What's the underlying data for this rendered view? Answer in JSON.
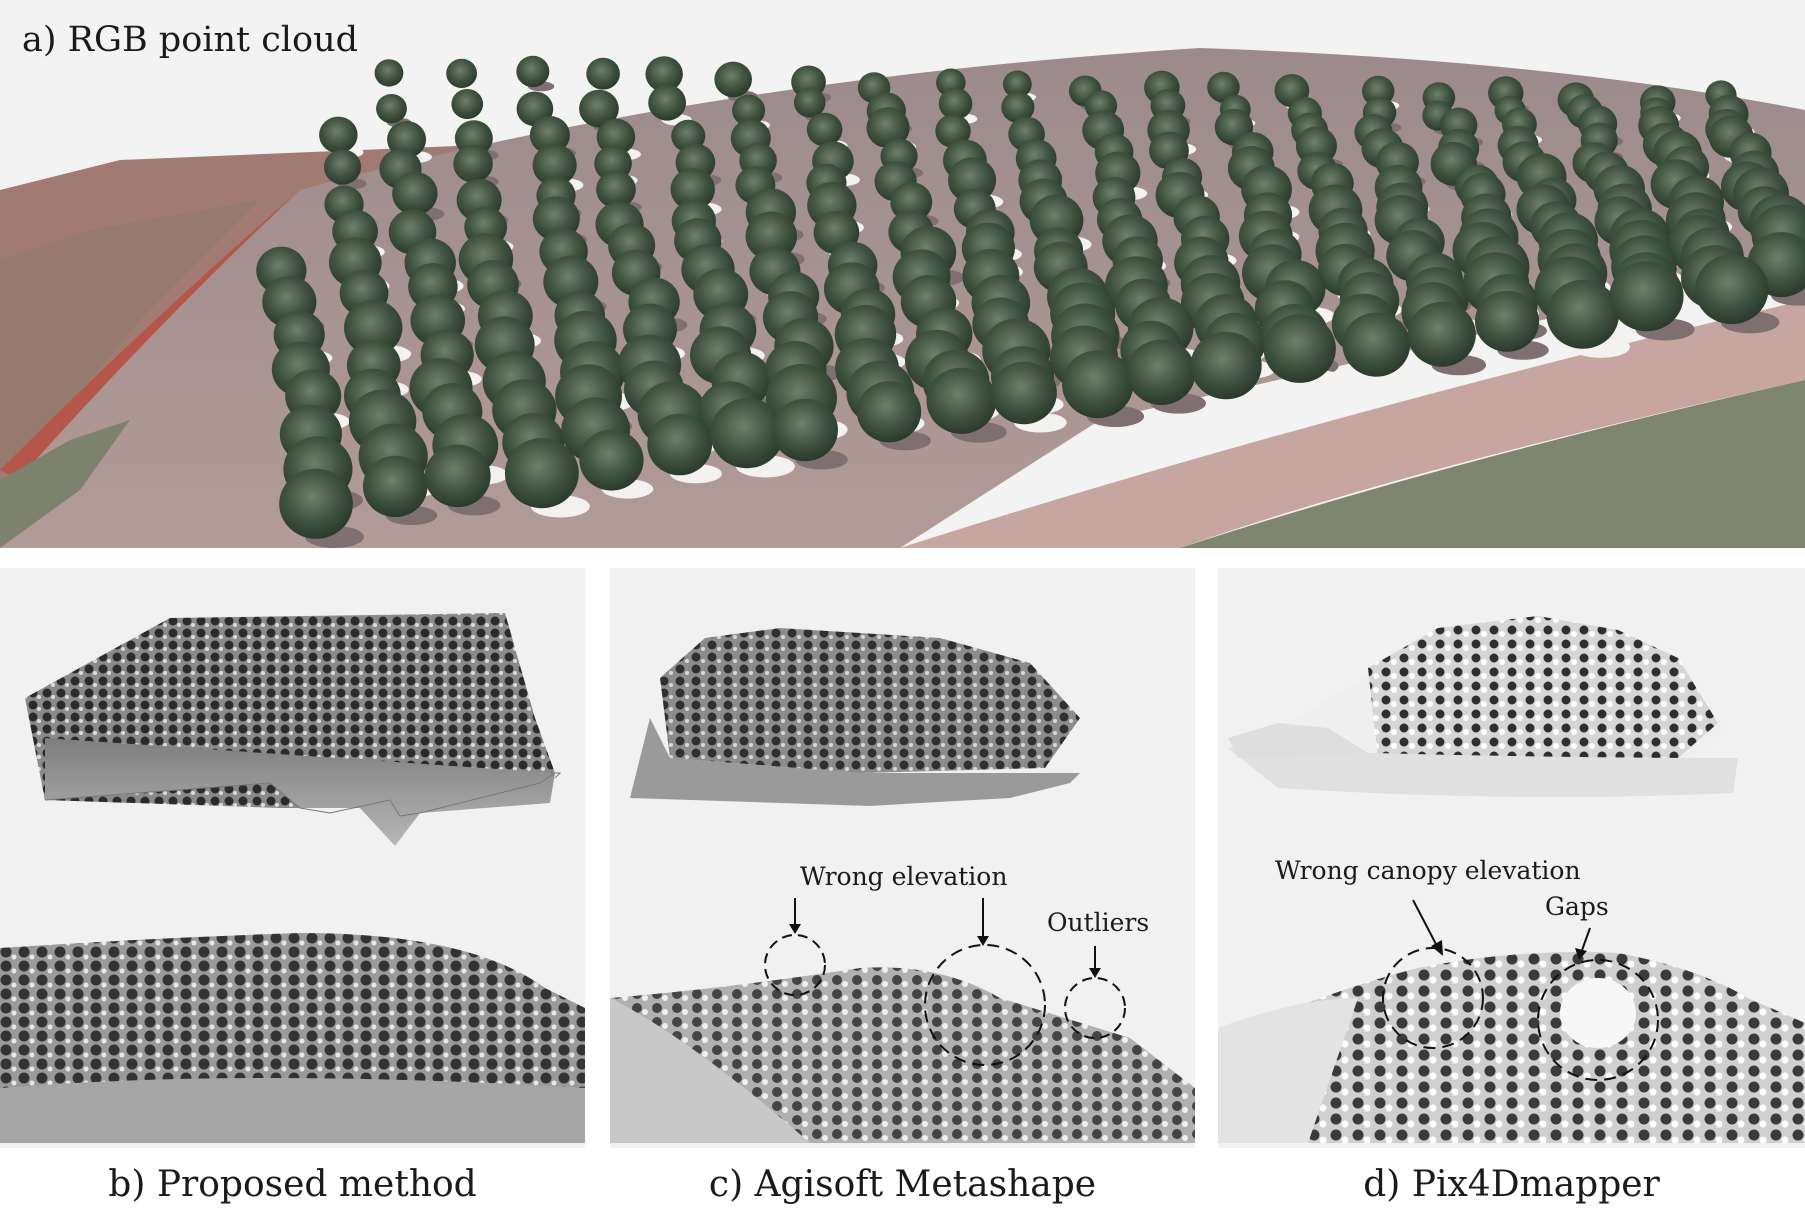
{
  "top_panel": {
    "label": "a) RGB point cloud"
  },
  "captions": {
    "b": "b) Proposed method",
    "c": "c) Agisoft Metashape",
    "d": "d) Pix4Dmapper"
  },
  "annotations": {
    "wrong_elevation": "Wrong elevation",
    "outliers": "Outliers",
    "wrong_canopy_elevation": "Wrong canopy elevation",
    "gaps": "Gaps"
  }
}
